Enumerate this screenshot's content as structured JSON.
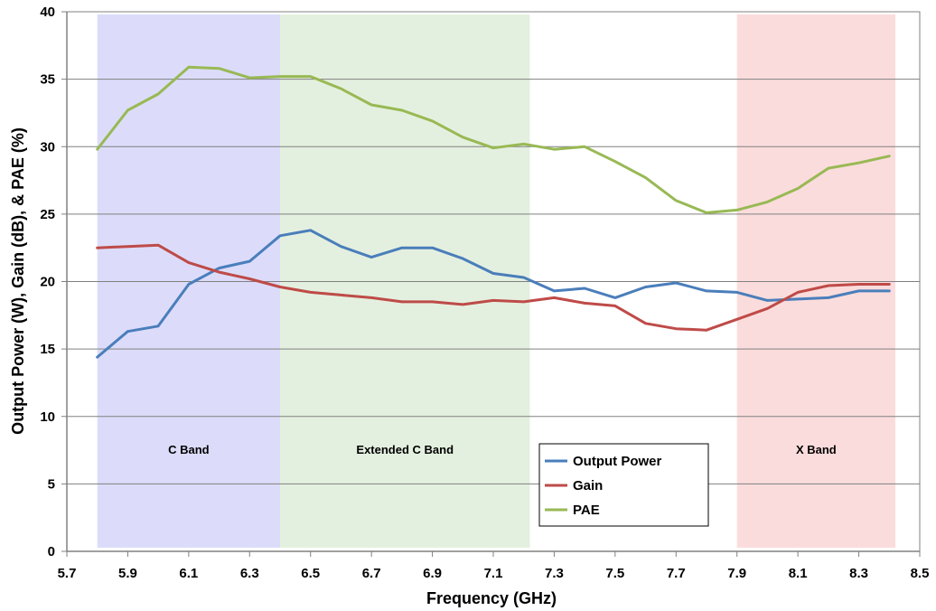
{
  "chart_data": {
    "type": "line",
    "title": "",
    "xlabel": "Frequency (GHz)",
    "ylabel": "Output Power (W), Gain (dB), & PAE (%)",
    "xlim": [
      5.7,
      8.5
    ],
    "ylim": [
      0,
      40
    ],
    "x_ticks": [
      "5.7",
      "5.9",
      "6.1",
      "6.3",
      "6.5",
      "6.7",
      "6.9",
      "7.1",
      "7.3",
      "7.5",
      "7.7",
      "7.9",
      "8.1",
      "8.3",
      "8.5"
    ],
    "y_ticks": [
      "0",
      "5",
      "10",
      "15",
      "20",
      "25",
      "30",
      "35",
      "40"
    ],
    "grid": "horizontal",
    "legend_position": "center-bottom",
    "bands": [
      {
        "label": "C Band",
        "x_start": 5.8,
        "x_end": 6.4,
        "color": "#dcdcfa"
      },
      {
        "label": "Extended C Band",
        "x_start": 6.4,
        "x_end": 7.22,
        "color": "#e4f0df"
      },
      {
        "label": "X Band",
        "x_start": 7.9,
        "x_end": 8.42,
        "color": "#fbdcdc"
      }
    ],
    "series": [
      {
        "name": "Output Power",
        "color": "#4a7ebb",
        "points": [
          [
            5.8,
            14.4
          ],
          [
            5.9,
            16.3
          ],
          [
            6.0,
            16.7
          ],
          [
            6.1,
            19.8
          ],
          [
            6.2,
            21.0
          ],
          [
            6.3,
            21.5
          ],
          [
            6.4,
            23.4
          ],
          [
            6.5,
            23.8
          ],
          [
            6.6,
            22.6
          ],
          [
            6.7,
            21.8
          ],
          [
            6.8,
            22.5
          ],
          [
            6.9,
            22.5
          ],
          [
            7.0,
            21.7
          ],
          [
            7.1,
            20.6
          ],
          [
            7.2,
            20.3
          ],
          [
            7.3,
            19.3
          ],
          [
            7.4,
            19.5
          ],
          [
            7.5,
            18.8
          ],
          [
            7.6,
            19.6
          ],
          [
            7.7,
            19.9
          ],
          [
            7.8,
            19.3
          ],
          [
            7.9,
            19.2
          ],
          [
            8.0,
            18.6
          ],
          [
            8.1,
            18.7
          ],
          [
            8.2,
            18.8
          ],
          [
            8.3,
            19.3
          ],
          [
            8.4,
            19.3
          ]
        ]
      },
      {
        "name": "Gain",
        "color": "#be4b48",
        "points": [
          [
            5.8,
            22.5
          ],
          [
            5.9,
            22.6
          ],
          [
            6.0,
            22.7
          ],
          [
            6.1,
            21.4
          ],
          [
            6.2,
            20.7
          ],
          [
            6.3,
            20.2
          ],
          [
            6.4,
            19.6
          ],
          [
            6.5,
            19.2
          ],
          [
            6.6,
            19.0
          ],
          [
            6.7,
            18.8
          ],
          [
            6.8,
            18.5
          ],
          [
            6.9,
            18.5
          ],
          [
            7.0,
            18.3
          ],
          [
            7.1,
            18.6
          ],
          [
            7.2,
            18.5
          ],
          [
            7.3,
            18.8
          ],
          [
            7.4,
            18.4
          ],
          [
            7.5,
            18.2
          ],
          [
            7.6,
            16.9
          ],
          [
            7.7,
            16.5
          ],
          [
            7.8,
            16.4
          ],
          [
            7.9,
            17.2
          ],
          [
            8.0,
            18.0
          ],
          [
            8.1,
            19.2
          ],
          [
            8.2,
            19.7
          ],
          [
            8.3,
            19.8
          ],
          [
            8.4,
            19.8
          ]
        ]
      },
      {
        "name": "PAE",
        "color": "#98b954",
        "points": [
          [
            5.8,
            29.8
          ],
          [
            5.9,
            32.7
          ],
          [
            6.0,
            33.9
          ],
          [
            6.1,
            35.9
          ],
          [
            6.2,
            35.8
          ],
          [
            6.3,
            35.1
          ],
          [
            6.4,
            35.2
          ],
          [
            6.5,
            35.2
          ],
          [
            6.6,
            34.3
          ],
          [
            6.7,
            33.1
          ],
          [
            6.8,
            32.7
          ],
          [
            6.9,
            31.9
          ],
          [
            7.0,
            30.7
          ],
          [
            7.1,
            29.9
          ],
          [
            7.2,
            30.2
          ],
          [
            7.3,
            29.8
          ],
          [
            7.4,
            30.0
          ],
          [
            7.5,
            28.9
          ],
          [
            7.6,
            27.7
          ],
          [
            7.7,
            26.0
          ],
          [
            7.8,
            25.1
          ],
          [
            7.9,
            25.3
          ],
          [
            8.0,
            25.9
          ],
          [
            8.1,
            26.9
          ],
          [
            8.2,
            28.4
          ],
          [
            8.3,
            28.8
          ],
          [
            8.4,
            29.3
          ]
        ]
      }
    ]
  }
}
